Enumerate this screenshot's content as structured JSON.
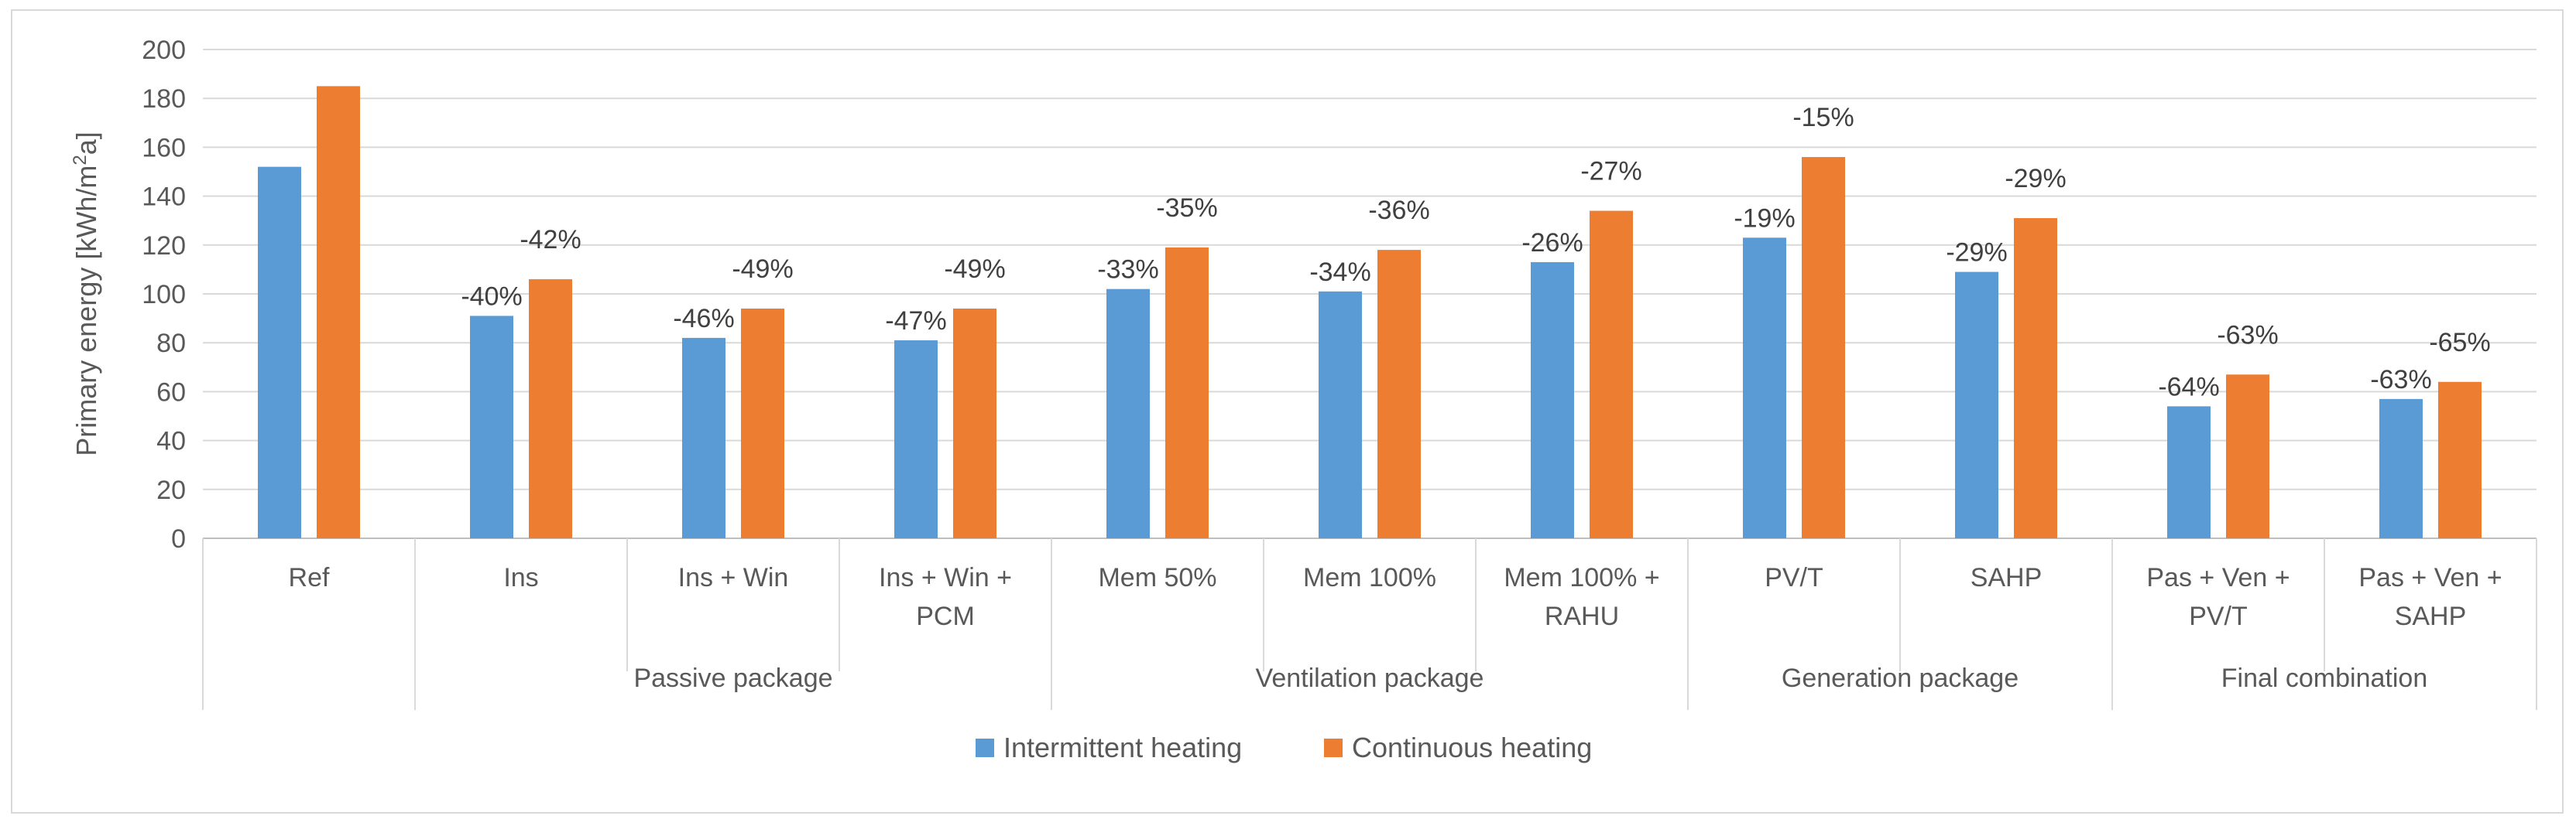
{
  "chart_data": {
    "type": "bar",
    "ylabel": "Primary energy [kWh/m²a]",
    "ylabel_main": "Primary energy [kWh/m",
    "ylabel_sup": "2",
    "ylabel_tail": "a]",
    "ylim": [
      0,
      200
    ],
    "ytick_step": 20,
    "grid": true,
    "legend_position": "bottom",
    "categories": [
      {
        "lines": [
          "Ref"
        ]
      },
      {
        "lines": [
          "Ins"
        ]
      },
      {
        "lines": [
          "Ins + Win"
        ]
      },
      {
        "lines": [
          "Ins + Win +",
          "PCM"
        ]
      },
      {
        "lines": [
          "Mem 50%"
        ]
      },
      {
        "lines": [
          "Mem 100%"
        ]
      },
      {
        "lines": [
          "Mem 100% +",
          "RAHU"
        ]
      },
      {
        "lines": [
          "PV/T"
        ]
      },
      {
        "lines": [
          "SAHP"
        ]
      },
      {
        "lines": [
          "Pas + Ven +",
          "PV/T"
        ]
      },
      {
        "lines": [
          "Pas + Ven +",
          "SAHP"
        ]
      }
    ],
    "groups": [
      {
        "label": "",
        "start": 0,
        "end": 0
      },
      {
        "label": "Passive package",
        "start": 1,
        "end": 3
      },
      {
        "label": "Ventilation package",
        "start": 4,
        "end": 6
      },
      {
        "label": "Generation package",
        "start": 7,
        "end": 8
      },
      {
        "label": "Final combination",
        "start": 9,
        "end": 10
      }
    ],
    "series": [
      {
        "name": "Intermittent heating",
        "color": "#5b9bd5",
        "values": [
          152,
          91,
          82,
          81,
          102,
          101,
          113,
          123,
          109,
          54,
          57
        ],
        "labels": [
          "",
          "-40%",
          "-46%",
          "-47%",
          "-33%",
          "-34%",
          "-26%",
          "-19%",
          "-29%",
          "-64%",
          "-63%"
        ]
      },
      {
        "name": "Continuous heating",
        "color": "#ed7d31",
        "values": [
          185,
          106,
          94,
          94,
          119,
          118,
          134,
          156,
          131,
          67,
          64
        ],
        "labels": [
          "",
          "-42%",
          "-49%",
          "-49%",
          "-35%",
          "-36%",
          "-27%",
          "-15%",
          "-29%",
          "-63%",
          "-65%"
        ]
      }
    ]
  }
}
